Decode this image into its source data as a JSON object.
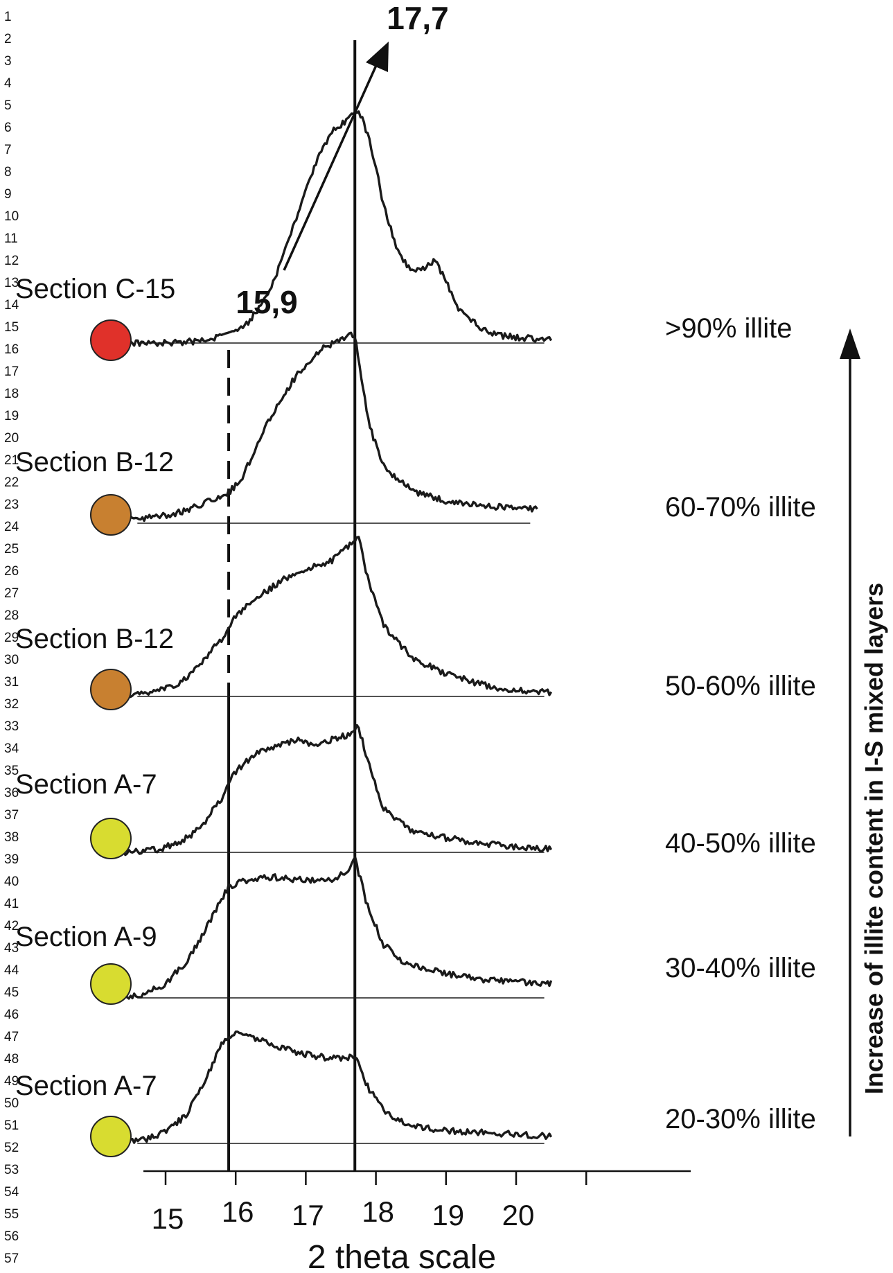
{
  "line_numbers": [
    "1",
    "2",
    "3",
    "4",
    "5",
    "6",
    "7",
    "8",
    "9",
    "10",
    "11",
    "12",
    "13",
    "14",
    "15",
    "16",
    "17",
    "18",
    "19",
    "20",
    "21",
    "22",
    "23",
    "24",
    "25",
    "26",
    "27",
    "28",
    "29",
    "30",
    "31",
    "32",
    "33",
    "34",
    "35",
    "36",
    "37",
    "38",
    "39",
    "40",
    "41",
    "42",
    "43",
    "44",
    "45",
    "46",
    "47",
    "48",
    "49",
    "50",
    "51",
    "52",
    "53",
    "54",
    "55",
    "56",
    "57"
  ],
  "chart_data": {
    "type": "line",
    "xlabel": "2 theta scale",
    "xticks": [
      "15",
      "16",
      "17",
      "18",
      "19",
      "20"
    ],
    "xlim": [
      14.4,
      21.0
    ],
    "peak_labels": {
      "left": "15,9",
      "right": "17,7"
    },
    "reference_lines_x": [
      15.9,
      17.7
    ],
    "side_label": "Increase of illite content  in I-S mixed layers",
    "series": [
      {
        "section": "Section C-15",
        "illite": ">90% illite",
        "color": "#e0312a",
        "x": [
          14.4,
          14.8,
          15.2,
          15.6,
          15.9,
          16.2,
          16.5,
          16.8,
          17.0,
          17.2,
          17.4,
          17.6,
          17.7,
          17.8,
          17.9,
          18.0,
          18.1,
          18.3,
          18.5,
          18.7,
          18.85,
          19.0,
          19.2,
          19.5,
          19.8,
          20.1,
          20.5
        ],
        "y": [
          0,
          0,
          0,
          0.02,
          0.05,
          0.12,
          0.3,
          0.62,
          0.85,
          1.05,
          1.18,
          1.24,
          1.28,
          1.26,
          1.13,
          0.98,
          0.78,
          0.52,
          0.4,
          0.42,
          0.46,
          0.34,
          0.18,
          0.08,
          0.04,
          0.03,
          0.02
        ]
      },
      {
        "section": "Section B-12",
        "illite": "60-70% illite",
        "color": "#c88030",
        "x": [
          14.4,
          14.8,
          15.2,
          15.6,
          15.9,
          16.1,
          16.3,
          16.6,
          16.9,
          17.2,
          17.5,
          17.7,
          17.9,
          18.1,
          18.3,
          18.6,
          19.0,
          19.4,
          19.8,
          20.3
        ],
        "y": [
          0.02,
          0.03,
          0.06,
          0.12,
          0.17,
          0.25,
          0.44,
          0.66,
          0.84,
          0.96,
          1.02,
          1.05,
          0.55,
          0.32,
          0.25,
          0.17,
          0.12,
          0.1,
          0.09,
          0.08
        ]
      },
      {
        "section": "Section B-12",
        "illite": "50-60% illite",
        "color": "#c88030",
        "x": [
          14.4,
          14.8,
          15.2,
          15.5,
          15.8,
          15.95,
          16.2,
          16.5,
          16.8,
          17.1,
          17.4,
          17.6,
          17.75,
          17.85,
          18.1,
          18.5,
          18.9,
          19.3,
          19.7,
          20.1,
          20.5
        ],
        "y": [
          0,
          0.02,
          0.07,
          0.18,
          0.32,
          0.42,
          0.52,
          0.6,
          0.68,
          0.72,
          0.76,
          0.83,
          0.9,
          0.7,
          0.4,
          0.22,
          0.14,
          0.09,
          0.05,
          0.03,
          0.02
        ]
      },
      {
        "section": "Section A-7",
        "illite": "40-50% illite",
        "color": "#d8dc30",
        "x": [
          14.4,
          14.8,
          15.2,
          15.5,
          15.8,
          16.0,
          16.3,
          16.6,
          16.9,
          17.1,
          17.4,
          17.6,
          17.75,
          17.85,
          18.1,
          18.5,
          19.0,
          19.5,
          20.0,
          20.5
        ],
        "y": [
          0,
          0.01,
          0.05,
          0.14,
          0.3,
          0.45,
          0.55,
          0.6,
          0.62,
          0.6,
          0.63,
          0.65,
          0.7,
          0.55,
          0.25,
          0.12,
          0.08,
          0.05,
          0.03,
          0.02
        ]
      },
      {
        "section": "Section A-9",
        "illite": "30-40% illite",
        "color": "#d8dc30",
        "x": [
          14.4,
          14.7,
          15.0,
          15.3,
          15.6,
          15.9,
          16.2,
          16.5,
          16.8,
          17.1,
          17.4,
          17.6,
          17.7,
          17.85,
          18.1,
          18.4,
          18.8,
          19.2,
          19.6,
          20.0,
          20.5
        ],
        "y": [
          0,
          0.02,
          0.08,
          0.2,
          0.4,
          0.62,
          0.66,
          0.67,
          0.66,
          0.65,
          0.66,
          0.7,
          0.78,
          0.55,
          0.3,
          0.2,
          0.15,
          0.12,
          0.1,
          0.09,
          0.08
        ]
      },
      {
        "section": "Section A-7",
        "illite": "20-30% illite",
        "color": "#d8dc30",
        "x": [
          14.4,
          14.7,
          15.0,
          15.3,
          15.6,
          15.8,
          16.0,
          16.3,
          16.6,
          16.9,
          17.2,
          17.5,
          17.7,
          17.9,
          18.2,
          18.6,
          19.0,
          19.5,
          20.0,
          20.5
        ],
        "y": [
          0,
          0.02,
          0.06,
          0.16,
          0.38,
          0.55,
          0.62,
          0.58,
          0.54,
          0.5,
          0.48,
          0.47,
          0.48,
          0.3,
          0.15,
          0.09,
          0.07,
          0.06,
          0.05,
          0.04
        ]
      }
    ]
  }
}
